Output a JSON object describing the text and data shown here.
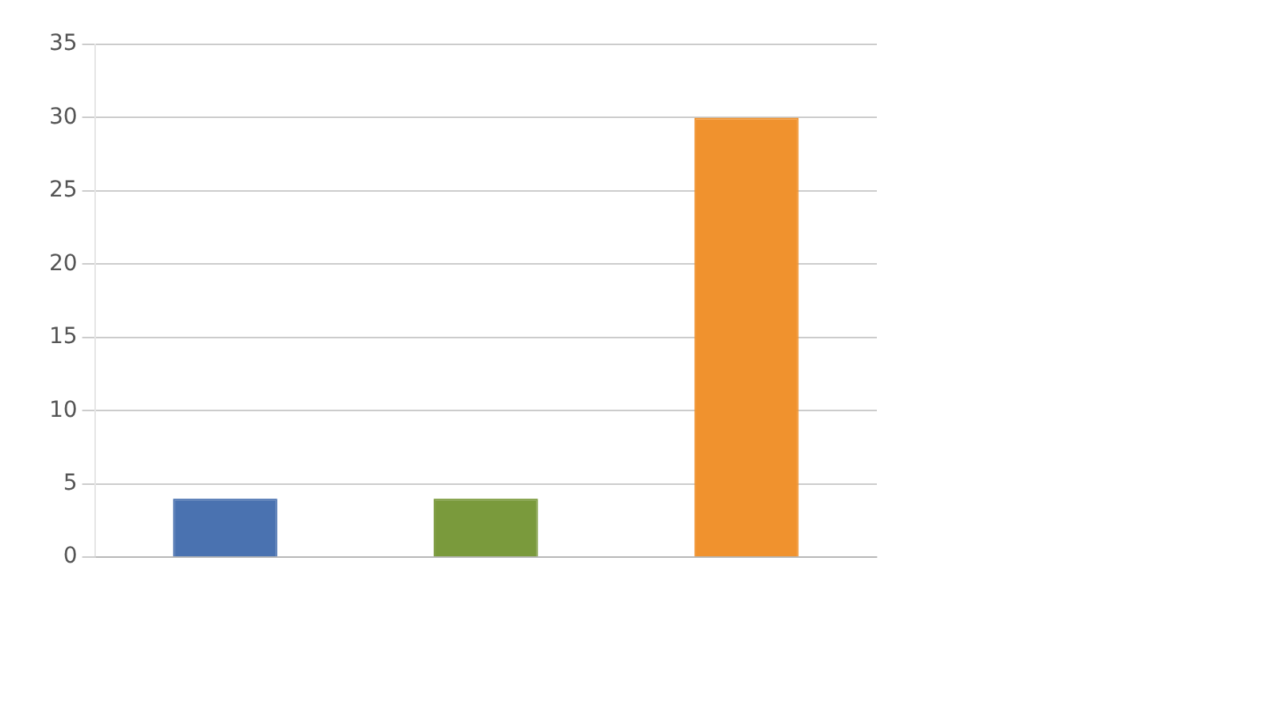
{
  "chart_data": {
    "type": "bar",
    "categories": [
      null,
      null,
      null
    ],
    "values": [
      4,
      4,
      30
    ],
    "colors": [
      "#4a72b0",
      "#7a9a3c",
      "#f0922e"
    ],
    "ylim": [
      0,
      35
    ],
    "yticks": [
      0,
      5,
      10,
      15,
      20,
      25,
      30,
      35
    ],
    "grid": "y"
  }
}
